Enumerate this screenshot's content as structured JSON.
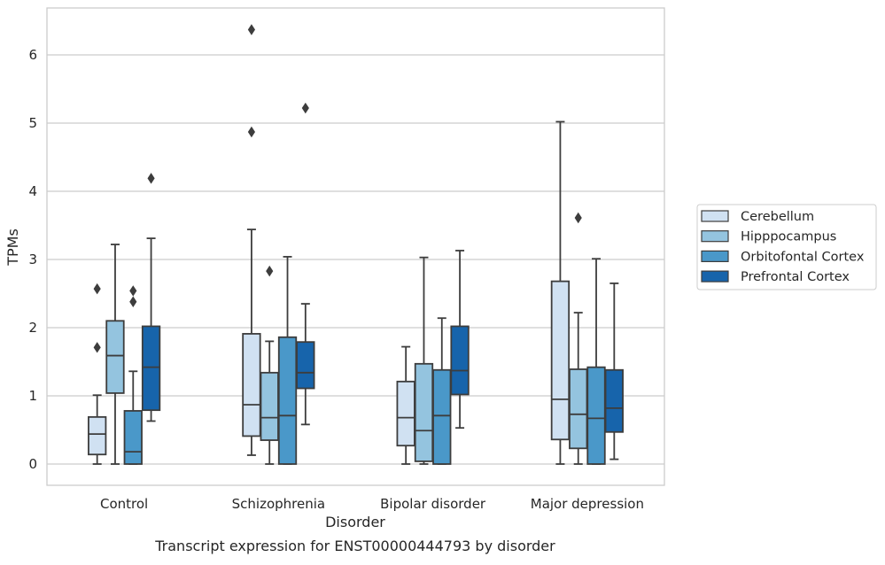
{
  "chart_data": {
    "type": "boxplot",
    "title": "",
    "caption": "Transcript expression for ENST00000444793 by disorder",
    "xlabel": "Disorder",
    "ylabel": "TPMs",
    "ylim": [
      -0.3,
      6.7
    ],
    "yticks": [
      0,
      1,
      2,
      3,
      4,
      5,
      6
    ],
    "grid": "horizontal",
    "legend_position": "right",
    "categories": [
      "Control",
      "Schizophrenia",
      "Bipolar disorder",
      "Major depression"
    ],
    "series": [
      {
        "name": "Cerebellum",
        "color": "#d0e1f2",
        "boxes": [
          {
            "whislo": 0.0,
            "q1": 0.14,
            "med": 0.44,
            "q3": 0.69,
            "whishi": 1.01,
            "fliers": [
              1.71,
              2.57
            ]
          },
          {
            "whislo": 0.13,
            "q1": 0.41,
            "med": 0.87,
            "q3": 1.91,
            "whishi": 3.44,
            "fliers": [
              4.87,
              6.37
            ]
          },
          {
            "whislo": 0.0,
            "q1": 0.27,
            "med": 0.68,
            "q3": 1.21,
            "whishi": 1.72,
            "fliers": []
          },
          {
            "whislo": 0.0,
            "q1": 0.36,
            "med": 0.95,
            "q3": 2.68,
            "whishi": 5.02,
            "fliers": []
          }
        ]
      },
      {
        "name": "Hipppocampus",
        "color": "#94c4df",
        "boxes": [
          {
            "whislo": 0.0,
            "q1": 1.04,
            "med": 1.59,
            "q3": 2.1,
            "whishi": 3.22,
            "fliers": []
          },
          {
            "whislo": 0.0,
            "q1": 0.35,
            "med": 0.68,
            "q3": 1.34,
            "whishi": 1.8,
            "fliers": [
              2.83
            ]
          },
          {
            "whislo": 0.0,
            "q1": 0.04,
            "med": 0.49,
            "q3": 1.47,
            "whishi": 3.03,
            "fliers": []
          },
          {
            "whislo": 0.0,
            "q1": 0.23,
            "med": 0.73,
            "q3": 1.39,
            "whishi": 2.22,
            "fliers": [
              3.61
            ]
          }
        ]
      },
      {
        "name": "Orbitofontal Cortex",
        "color": "#4a98c9",
        "boxes": [
          {
            "whislo": 0.0,
            "q1": 0.0,
            "med": 0.18,
            "q3": 0.78,
            "whishi": 1.36,
            "fliers": [
              2.38,
              2.54
            ]
          },
          {
            "whislo": 0.0,
            "q1": 0.0,
            "med": 0.71,
            "q3": 1.86,
            "whishi": 3.04,
            "fliers": []
          },
          {
            "whislo": 0.0,
            "q1": 0.0,
            "med": 0.71,
            "q3": 1.38,
            "whishi": 2.14,
            "fliers": []
          },
          {
            "whislo": 0.0,
            "q1": 0.0,
            "med": 0.67,
            "q3": 1.42,
            "whishi": 3.01,
            "fliers": []
          }
        ]
      },
      {
        "name": "Prefrontal Cortex",
        "color": "#1764ab",
        "boxes": [
          {
            "whislo": 0.63,
            "q1": 0.79,
            "med": 1.42,
            "q3": 2.02,
            "whishi": 3.31,
            "fliers": [
              4.19
            ]
          },
          {
            "whislo": 0.58,
            "q1": 1.11,
            "med": 1.34,
            "q3": 1.79,
            "whishi": 2.35,
            "fliers": [
              5.22
            ]
          },
          {
            "whislo": 0.53,
            "q1": 1.02,
            "med": 1.37,
            "q3": 2.02,
            "whishi": 3.13,
            "fliers": []
          },
          {
            "whislo": 0.07,
            "q1": 0.47,
            "med": 0.82,
            "q3": 1.38,
            "whishi": 2.65,
            "fliers": []
          }
        ]
      }
    ]
  },
  "colors": {
    "grid": "#cccccc",
    "frame": "#cccccc",
    "line": "#3d3d3d",
    "text": "#262626"
  }
}
